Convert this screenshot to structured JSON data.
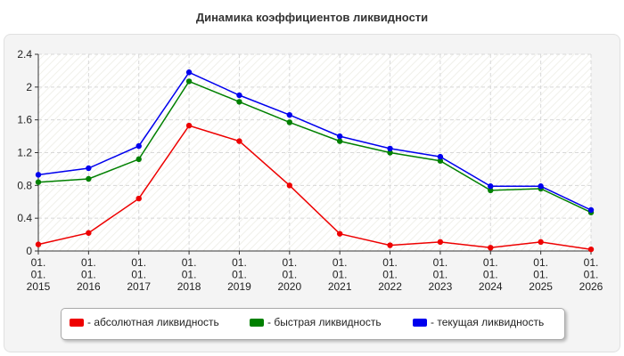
{
  "chart_data": {
    "type": "line",
    "title": "Динамика коэффициентов ликвидности",
    "xlabel": "",
    "ylabel": "",
    "categories": [
      [
        "01.",
        "01.",
        "2015"
      ],
      [
        "01.",
        "01.",
        "2016"
      ],
      [
        "01.",
        "01.",
        "2017"
      ],
      [
        "01.",
        "01.",
        "2018"
      ],
      [
        "01.",
        "01.",
        "2019"
      ],
      [
        "01.",
        "01.",
        "2020"
      ],
      [
        "01.",
        "01.",
        "2021"
      ],
      [
        "01.",
        "01.",
        "2022"
      ],
      [
        "01.",
        "01.",
        "2023"
      ],
      [
        "01.",
        "01.",
        "2024"
      ],
      [
        "01.",
        "01.",
        "2025"
      ],
      [
        "01.",
        "01.",
        "2026"
      ]
    ],
    "ylim": [
      0,
      2.4
    ],
    "yticks": [
      "0",
      "0.4",
      "0.8",
      "1.2",
      "1.6",
      "2",
      "2.4"
    ],
    "grid": true,
    "legend_position": "bottom",
    "series": [
      {
        "name": "- абсолютная ликвидность",
        "color": "#ee0000",
        "values": [
          0.08,
          0.22,
          0.64,
          1.53,
          1.34,
          0.8,
          0.21,
          0.07,
          0.11,
          0.04,
          0.11,
          0.02
        ]
      },
      {
        "name": "- быстрая ликвидность",
        "color": "#008000",
        "values": [
          0.84,
          0.88,
          1.12,
          2.07,
          1.82,
          1.57,
          1.34,
          1.2,
          1.1,
          0.74,
          0.76,
          0.47
        ]
      },
      {
        "name": "- текущая ликвидность",
        "color": "#0000ee",
        "values": [
          0.93,
          1.01,
          1.28,
          2.18,
          1.9,
          1.66,
          1.4,
          1.25,
          1.15,
          0.79,
          0.79,
          0.5
        ]
      }
    ]
  }
}
